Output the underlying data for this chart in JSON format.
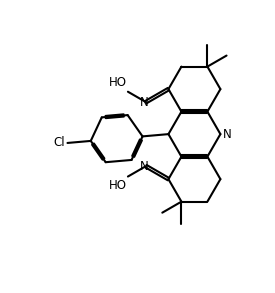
{
  "background": "#ffffff",
  "line_color": "#000000",
  "bond_lw": 1.5,
  "label_fontsize": 8.5,
  "figsize": [
    2.75,
    2.93
  ],
  "dpi": 100,
  "s": 0.62,
  "xlim": [
    -0.5,
    10.5
  ],
  "ylim": [
    -0.5,
    10.5
  ]
}
